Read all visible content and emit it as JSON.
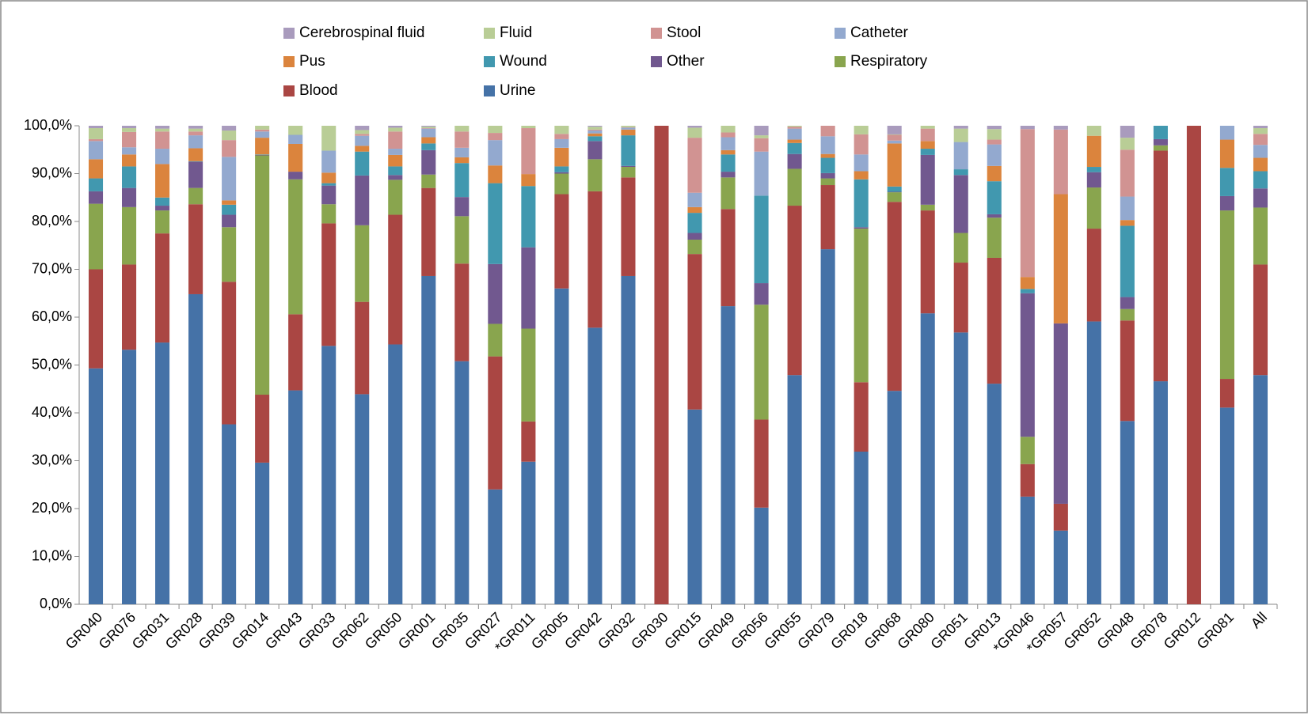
{
  "chart_data": {
    "type": "stacked_bar",
    "categories": [
      "GR040",
      "GR076",
      "GR031",
      "GR028",
      "GR039",
      "GR014",
      "GR043",
      "GR033",
      "GR062",
      "GR050",
      "GR001",
      "GR035",
      "GR027",
      "*GR011",
      "GR005",
      "GR042",
      "GR032",
      "GR030",
      "GR015",
      "GR049",
      "GR056",
      "GR055",
      "GR079",
      "GR018",
      "GR068",
      "GR080",
      "GR051",
      "GR013",
      "*GR046",
      "*GR057",
      "GR052",
      "GR048",
      "GR078",
      "GR012",
      "GR081",
      "All"
    ],
    "series": [
      {
        "name": "Urine",
        "color": "#4572a7",
        "values": [
          49.3,
          53.2,
          54.7,
          64.8,
          37.6,
          29.6,
          44.7,
          54.0,
          43.9,
          54.3,
          68.6,
          50.8,
          24.0,
          29.8,
          66.0,
          57.8,
          68.6,
          0,
          40.7,
          62.3,
          20.2,
          47.9,
          74.2,
          31.9,
          44.6,
          60.8,
          56.8,
          46.1,
          22.5,
          15.4,
          59.1,
          38.3,
          46.6,
          0,
          41.1,
          47.9
        ]
      },
      {
        "name": "Blood",
        "color": "#aa4643",
        "values": [
          20.7,
          17.8,
          22.8,
          18.8,
          29.8,
          14.2,
          15.9,
          25.6,
          19.3,
          27.1,
          18.4,
          20.4,
          27.8,
          8.4,
          19.7,
          28.5,
          20.6,
          100,
          32.5,
          20.3,
          18.4,
          35.4,
          13.4,
          14.5,
          39.5,
          21.5,
          14.6,
          26.3,
          6.8,
          5.6,
          19.4,
          21.0,
          48.2,
          100,
          6.0,
          23.1
        ]
      },
      {
        "name": "Respiratory",
        "color": "#89a54e",
        "values": [
          13.7,
          12.0,
          4.8,
          3.4,
          11.4,
          50.0,
          28.2,
          4.0,
          16.0,
          7.3,
          2.8,
          9.9,
          6.8,
          19.4,
          4.3,
          6.7,
          2.2,
          0,
          3.0,
          6.6,
          24.0,
          7.7,
          1.4,
          32.1,
          2.0,
          1.2,
          6.2,
          8.4,
          5.7,
          0,
          8.6,
          2.4,
          1.1,
          0,
          35.2,
          11.9
        ]
      },
      {
        "name": "Other",
        "color": "#71588f",
        "values": [
          2.6,
          4.0,
          1.0,
          5.5,
          2.6,
          0.1,
          1.6,
          3.9,
          10.4,
          1.0,
          5.1,
          4.0,
          12.5,
          17.0,
          0.3,
          3.8,
          0.2,
          0,
          1.4,
          1.2,
          4.5,
          3.1,
          1.1,
          0.3,
          0.1,
          10.4,
          12.1,
          0.7,
          30.0,
          37.7,
          3.2,
          2.5,
          1.3,
          0,
          3.0,
          4.0
        ]
      },
      {
        "name": "Wound",
        "color": "#4198af",
        "values": [
          2.7,
          4.5,
          1.7,
          0.1,
          2.1,
          0.1,
          0,
          0.5,
          5.0,
          1.8,
          1.4,
          7.1,
          16.9,
          12.8,
          1.2,
          1.0,
          6.4,
          0,
          4.2,
          3.6,
          18.3,
          2.3,
          3.2,
          10.0,
          1.1,
          1.3,
          1.2,
          6.9,
          0.9,
          0,
          1.1,
          14.9,
          2.8,
          0,
          5.9,
          3.6
        ]
      },
      {
        "name": "Pus",
        "color": "#db843d",
        "values": [
          4.0,
          2.5,
          7.0,
          2.7,
          0.9,
          3.5,
          5.8,
          2.2,
          1.2,
          2.4,
          1.3,
          1.2,
          3.7,
          2.5,
          3.9,
          0.6,
          1.2,
          0,
          1.2,
          0.9,
          0,
          0.7,
          0.8,
          1.7,
          9.0,
          1.6,
          0,
          3.2,
          2.5,
          27.0,
          6.5,
          1.2,
          0,
          0,
          5.9,
          2.8
        ]
      },
      {
        "name": "Catheter",
        "color": "#93a9cf",
        "values": [
          3.8,
          1.5,
          3.2,
          2.7,
          9.1,
          1.3,
          1.9,
          4.6,
          2.1,
          1.3,
          1.8,
          2.0,
          5.3,
          0,
          1.8,
          0.6,
          0.4,
          0,
          3.0,
          2.7,
          9.2,
          2.3,
          3.7,
          3.5,
          0.6,
          0,
          5.7,
          4.5,
          0,
          0,
          0,
          4.9,
          0,
          0,
          2.9,
          2.7
        ]
      },
      {
        "name": "Stool",
        "color": "#d19392",
        "values": [
          0.4,
          3.2,
          3.6,
          0.8,
          3.5,
          0.4,
          0,
          0,
          0.4,
          3.6,
          0.1,
          3.4,
          1.5,
          9.6,
          1.1,
          0.2,
          0.1,
          0,
          11.5,
          1.0,
          2.8,
          0.4,
          2.2,
          4.2,
          1.2,
          2.6,
          0,
          1.0,
          30.9,
          13.5,
          0,
          9.8,
          0,
          0,
          0,
          2.3
        ]
      },
      {
        "name": "Fluid",
        "color": "#b9cd96",
        "values": [
          2.3,
          0.8,
          0.6,
          0.6,
          2.0,
          0.8,
          1.9,
          5.2,
          0.8,
          0.8,
          0.3,
          1.2,
          1.5,
          0.5,
          1.7,
          0.6,
          0.3,
          0,
          2.1,
          1.4,
          0.6,
          0.2,
          0,
          1.8,
          0.1,
          0.6,
          2.8,
          2.2,
          0,
          0,
          2.1,
          2.5,
          0,
          0,
          0,
          1.2
        ]
      },
      {
        "name": "Cerebrospinal fluid",
        "color": "#a99bbd",
        "values": [
          0.5,
          0.5,
          0.6,
          0.6,
          1.0,
          0,
          0,
          0,
          0.9,
          0.4,
          0.2,
          0,
          0,
          0,
          0,
          0.2,
          0,
          0,
          0.4,
          0,
          2.0,
          0,
          0,
          0,
          1.8,
          0,
          0.6,
          0.7,
          0.7,
          0.8,
          0,
          2.5,
          0,
          0,
          0,
          0.5
        ]
      }
    ],
    "ylim": [
      0,
      100
    ],
    "yticks": [
      {
        "value": 0,
        "label": "0,0%"
      },
      {
        "value": 10,
        "label": "10,0%"
      },
      {
        "value": 20,
        "label": "20,0%"
      },
      {
        "value": 30,
        "label": "30,0%"
      },
      {
        "value": 40,
        "label": "40,0%"
      },
      {
        "value": 50,
        "label": "50,0%"
      },
      {
        "value": 60,
        "label": "60,0%"
      },
      {
        "value": 70,
        "label": "70,0%"
      },
      {
        "value": 80,
        "label": "80,0%"
      },
      {
        "value": 90,
        "label": "90,0%"
      },
      {
        "value": 100,
        "label": "100,0%"
      }
    ],
    "grid": false,
    "legend": "top"
  }
}
